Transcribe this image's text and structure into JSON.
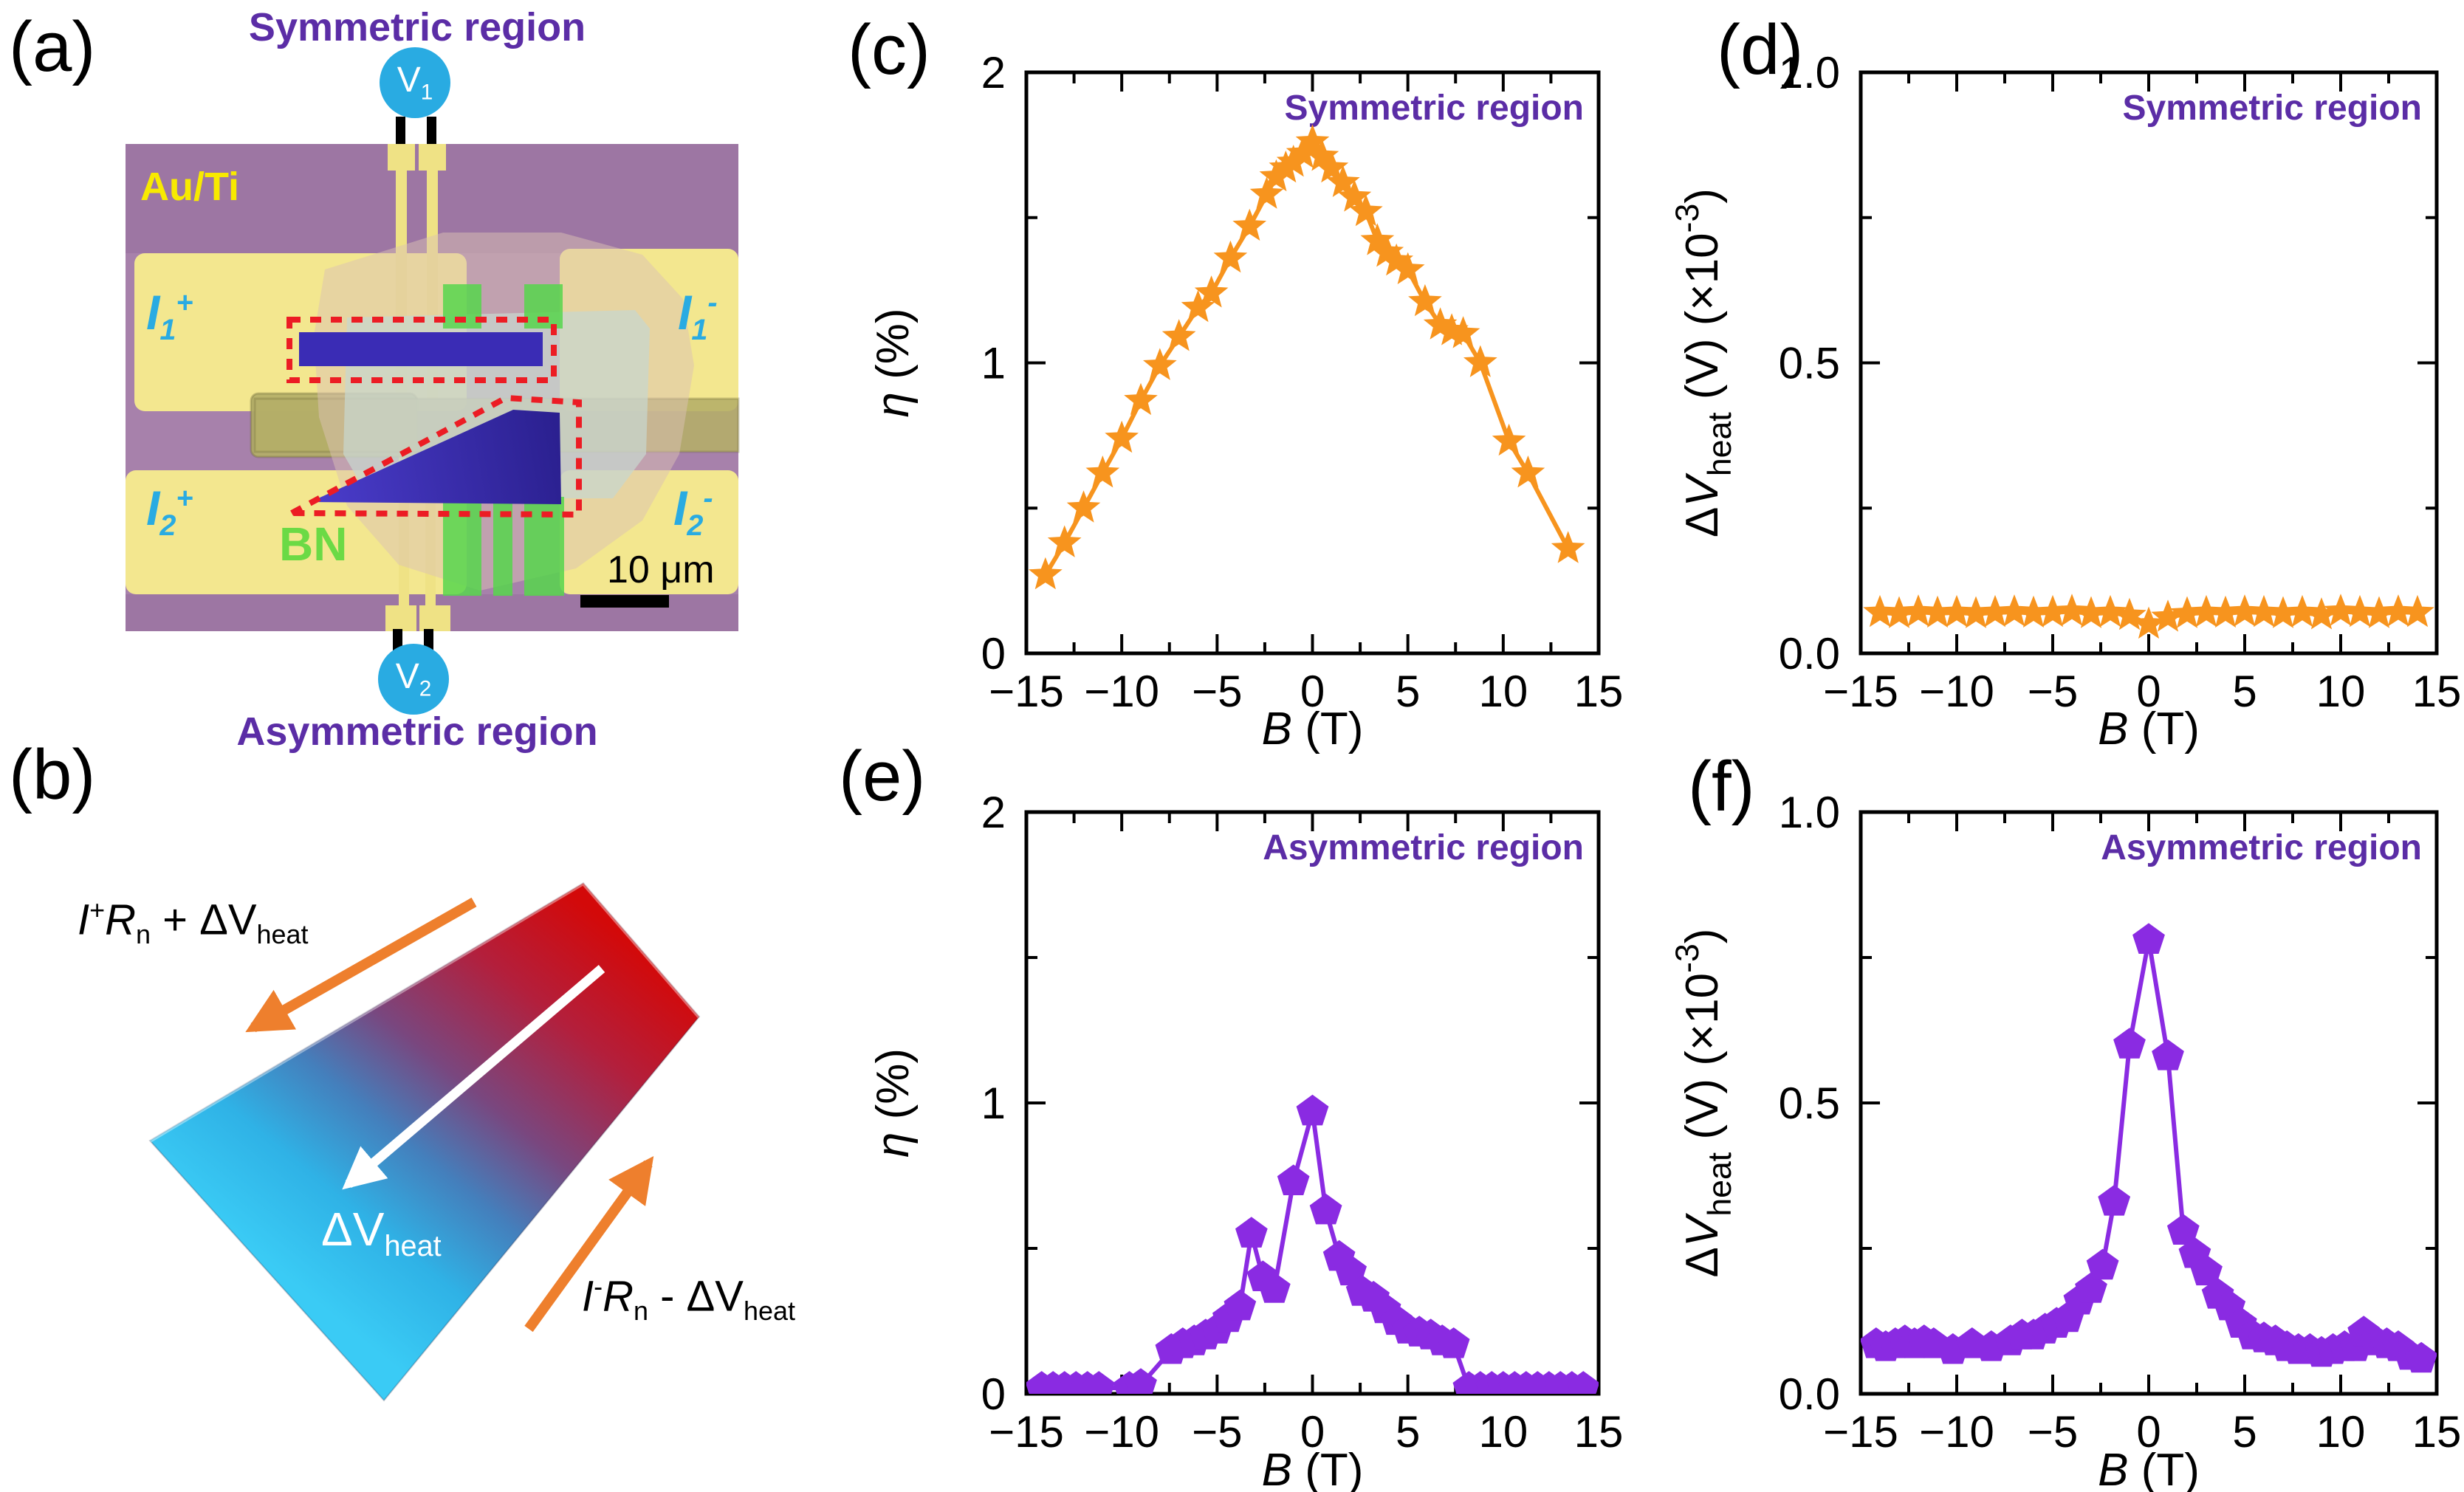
{
  "figure": {
    "panel_labels": {
      "a": "(a)",
      "b": "(b)",
      "c": "(c)",
      "d": "(d)",
      "e": "(e)",
      "f": "(f)"
    }
  },
  "colors": {
    "series_orange": "#F7941E",
    "series_purple": "#8A2BE2",
    "region_label_purple": "#5B2DA6",
    "probe_cyan": "#29ABE2",
    "electrode_gold": "#F3E78F",
    "bn_green": "#57D64D",
    "flake_blue": "#3A2CB5",
    "outline_red": "#EC1C24",
    "micrograph_purple": "#A781AB"
  },
  "panel_a": {
    "title_top": "Symmetric region",
    "title_bottom": "Asymmetric region",
    "electrode_label": "Au/Ti",
    "bn_label": "BN",
    "scale_bar_text": "10 μm",
    "probe_top": [
      {
        "t": "V"
      },
      {
        "t": "1",
        "sub": true
      }
    ],
    "probe_bottom": [
      {
        "t": "V"
      },
      {
        "t": "2",
        "sub": true
      }
    ],
    "terminal_i1p": [
      {
        "t": "I",
        "i": true
      },
      {
        "t": "1",
        "sub": true
      },
      {
        "t": "+",
        "sup": true
      }
    ],
    "terminal_i1m": [
      {
        "t": "I",
        "i": true
      },
      {
        "t": "1",
        "sub": true
      },
      {
        "t": "-",
        "sup": true
      }
    ],
    "terminal_i2p": [
      {
        "t": "I",
        "i": true
      },
      {
        "t": "2",
        "sub": true
      },
      {
        "t": "+",
        "sup": true
      }
    ],
    "terminal_i2m": [
      {
        "t": "I",
        "i": true
      },
      {
        "t": "2",
        "sub": true
      },
      {
        "t": "-",
        "sup": true
      }
    ]
  },
  "panel_b": {
    "label_top_edge": [
      {
        "t": "I",
        "i": true
      },
      {
        "t": "+",
        "sup": true
      },
      {
        "t": "R",
        "i": true
      },
      {
        "t": "n",
        "sub": true
      },
      {
        "t": " + ΔV"
      },
      {
        "t": "heat",
        "sub": true
      }
    ],
    "label_center": [
      {
        "t": "ΔV"
      },
      {
        "t": "heat",
        "sub": true
      }
    ],
    "label_bottom_edge": [
      {
        "t": "I",
        "i": true
      },
      {
        "t": "-",
        "sup": true
      },
      {
        "t": "R",
        "i": true
      },
      {
        "t": "n",
        "sub": true
      },
      {
        "t": " - ΔV"
      },
      {
        "t": "heat",
        "sub": true
      }
    ]
  },
  "chart_data": [
    {
      "id": "c",
      "type": "line",
      "marker": "star",
      "color": "#F7941E",
      "annotation": "Symmetric region",
      "annotation_color": "#5B2DA6",
      "xlabel_parts": [
        {
          "t": "B",
          "i": true
        },
        {
          "t": " (T)"
        }
      ],
      "ylabel_parts": [
        {
          "t": "η",
          "i": true
        },
        {
          "t": " (%)"
        }
      ],
      "xlim": [
        -15,
        15
      ],
      "ylim": [
        0,
        2
      ],
      "xticks": {
        "values": [
          -15,
          -10,
          -5,
          0,
          5,
          10,
          15
        ],
        "labels": [
          "−15",
          "−10",
          "−5",
          "0",
          "5",
          "10",
          "15"
        ],
        "minor": [
          -12.5,
          -7.5,
          -2.5,
          2.5,
          7.5,
          12.5
        ]
      },
      "yticks": {
        "values": [
          0,
          1,
          2
        ],
        "labels": [
          "0",
          "1",
          "2"
        ],
        "minor": [
          0.5,
          1.5
        ]
      },
      "x": [
        -14,
        -13,
        -12,
        -11,
        -10,
        -9,
        -8,
        -7,
        -6,
        -5.3,
        -4.3,
        -3.3,
        -2.4,
        -1.9,
        -1.4,
        -1,
        -0.5,
        0,
        0.5,
        1,
        1.6,
        2.2,
        2.8,
        3.4,
        3.9,
        4.4,
        5,
        5.9,
        6.7,
        7.3,
        7.9,
        8.8,
        10.3,
        11.3,
        13.4
      ],
      "y": [
        0.27,
        0.38,
        0.5,
        0.62,
        0.74,
        0.87,
        0.99,
        1.09,
        1.19,
        1.24,
        1.36,
        1.47,
        1.58,
        1.64,
        1.67,
        1.69,
        1.72,
        1.76,
        1.71,
        1.67,
        1.62,
        1.57,
        1.52,
        1.42,
        1.38,
        1.35,
        1.32,
        1.21,
        1.13,
        1.11,
        1.1,
        1.0,
        0.73,
        0.62,
        0.36
      ]
    },
    {
      "id": "d",
      "type": "line",
      "marker": "star",
      "color": "#F7941E",
      "annotation": "Symmetric region",
      "annotation_color": "#5B2DA6",
      "xlabel_parts": [
        {
          "t": "B",
          "i": true
        },
        {
          "t": " (T)"
        }
      ],
      "ylabel_parts": [
        {
          "t": "Δ"
        },
        {
          "t": "V",
          "i": true
        },
        {
          "t": "heat",
          "sub": true
        },
        {
          "t": " (V) (×10"
        },
        {
          "t": "-3",
          "sup": true
        },
        {
          "t": ")"
        }
      ],
      "xlim": [
        -15,
        15
      ],
      "ylim": [
        0,
        1
      ],
      "xticks": {
        "values": [
          -15,
          -10,
          -5,
          0,
          5,
          10,
          15
        ],
        "labels": [
          "−15",
          "−10",
          "−5",
          "0",
          "5",
          "10",
          "15"
        ],
        "minor": [
          -12.5,
          -7.5,
          -2.5,
          2.5,
          7.5,
          12.5
        ]
      },
      "yticks": {
        "values": [
          0,
          0.5,
          1
        ],
        "labels": [
          "0.0",
          "0.5",
          "1.0"
        ],
        "minor": [
          0.25,
          0.75
        ]
      },
      "x": [
        -14,
        -13,
        -12,
        -11,
        -10,
        -9,
        -8,
        -7,
        -6,
        -5,
        -4,
        -3,
        -2,
        -1,
        0,
        1,
        2,
        3,
        4,
        5,
        6,
        7,
        8,
        9,
        10,
        11,
        12,
        13,
        14
      ],
      "y": [
        0.07,
        0.068,
        0.071,
        0.069,
        0.07,
        0.068,
        0.07,
        0.071,
        0.069,
        0.07,
        0.072,
        0.068,
        0.07,
        0.065,
        0.05,
        0.062,
        0.068,
        0.07,
        0.069,
        0.071,
        0.07,
        0.068,
        0.07,
        0.066,
        0.072,
        0.07,
        0.068,
        0.071,
        0.07
      ]
    },
    {
      "id": "e",
      "type": "line",
      "marker": "pentagon",
      "color": "#8A2BE2",
      "annotation": "Asymmetric region",
      "annotation_color": "#5B2DA6",
      "xlabel_parts": [
        {
          "t": "B",
          "i": true
        },
        {
          "t": " (T)"
        }
      ],
      "ylabel_parts": [
        {
          "t": "η",
          "i": true
        },
        {
          "t": " (%)"
        }
      ],
      "xlim": [
        -15,
        15
      ],
      "ylim": [
        0,
        2
      ],
      "xticks": {
        "values": [
          -15,
          -10,
          -5,
          0,
          5,
          10,
          15
        ],
        "labels": [
          "−15",
          "−10",
          "−5",
          "0",
          "5",
          "10",
          "15"
        ],
        "minor": [
          -12.5,
          -7.5,
          -2.5,
          2.5,
          7.5,
          12.5
        ]
      },
      "yticks": {
        "values": [
          0,
          1,
          2
        ],
        "labels": [
          "0",
          "1",
          "2"
        ],
        "minor": [
          0.5,
          1.5
        ]
      },
      "x": [
        -14.2,
        -13.6,
        -13,
        -12.4,
        -11.8,
        -11.2,
        -9.6,
        -9,
        -7.4,
        -6.8,
        -6.2,
        -5.6,
        -5,
        -4.4,
        -3.8,
        -3.2,
        -2.6,
        -2,
        -1,
        0,
        0.7,
        1.4,
        2,
        2.6,
        3.2,
        3.8,
        4.4,
        5,
        5.6,
        6.2,
        6.8,
        7.4,
        8.2,
        8.8,
        9.4,
        10,
        10.6,
        11.2,
        11.8,
        12.4,
        13,
        13.6,
        14.2
      ],
      "y": [
        0.02,
        0.02,
        0.02,
        0.02,
        0.02,
        0.02,
        0.02,
        0.03,
        0.15,
        0.17,
        0.18,
        0.2,
        0.22,
        0.26,
        0.3,
        0.55,
        0.4,
        0.36,
        0.73,
        0.97,
        0.63,
        0.47,
        0.42,
        0.35,
        0.33,
        0.29,
        0.25,
        0.22,
        0.21,
        0.2,
        0.18,
        0.17,
        0.02,
        0.02,
        0.02,
        0.02,
        0.02,
        0.02,
        0.02,
        0.02,
        0.02,
        0.02,
        0.02
      ]
    },
    {
      "id": "f",
      "type": "line",
      "marker": "pentagon",
      "color": "#8A2BE2",
      "annotation": "Asymmetric region",
      "annotation_color": "#5B2DA6",
      "xlabel_parts": [
        {
          "t": "B",
          "i": true
        },
        {
          "t": " (T)"
        }
      ],
      "ylabel_parts": [
        {
          "t": "Δ"
        },
        {
          "t": "V",
          "i": true
        },
        {
          "t": "heat",
          "sub": true
        },
        {
          "t": " (V) (×10"
        },
        {
          "t": "-3",
          "sup": true
        },
        {
          "t": ")"
        }
      ],
      "xlim": [
        -15,
        15
      ],
      "ylim": [
        0,
        1
      ],
      "xticks": {
        "values": [
          -15,
          -10,
          -5,
          0,
          5,
          10,
          15
        ],
        "labels": [
          "−15",
          "−10",
          "−5",
          "0",
          "5",
          "10",
          "15"
        ],
        "minor": [
          -12.5,
          -7.5,
          -2.5,
          2.5,
          7.5,
          12.5
        ]
      },
      "yticks": {
        "values": [
          0,
          0.5,
          1
        ],
        "labels": [
          "0.0",
          "0.5",
          "1.0"
        ],
        "minor": [
          0.25,
          0.75
        ]
      },
      "x": [
        -14.2,
        -13.7,
        -13.2,
        -12.7,
        -12.2,
        -11.7,
        -11.2,
        -10.2,
        -9.2,
        -8.2,
        -7.2,
        -6.6,
        -6,
        -5.4,
        -4.8,
        -4.2,
        -3.6,
        -3,
        -2.4,
        -1.8,
        -1,
        0,
        1,
        1.8,
        2.4,
        3,
        3.6,
        4.2,
        4.8,
        5.4,
        6,
        6.6,
        7.2,
        7.8,
        8.4,
        9,
        9.6,
        10.2,
        10.8,
        11.2,
        11.8,
        12.4,
        13,
        13.6,
        14.2
      ],
      "y": [
        0.085,
        0.08,
        0.085,
        0.09,
        0.085,
        0.09,
        0.085,
        0.075,
        0.085,
        0.08,
        0.09,
        0.1,
        0.1,
        0.11,
        0.12,
        0.13,
        0.16,
        0.18,
        0.22,
        0.33,
        0.6,
        0.78,
        0.58,
        0.28,
        0.24,
        0.21,
        0.17,
        0.15,
        0.12,
        0.1,
        0.095,
        0.09,
        0.08,
        0.075,
        0.075,
        0.07,
        0.075,
        0.08,
        0.08,
        0.105,
        0.09,
        0.085,
        0.08,
        0.065,
        0.06
      ]
    }
  ]
}
